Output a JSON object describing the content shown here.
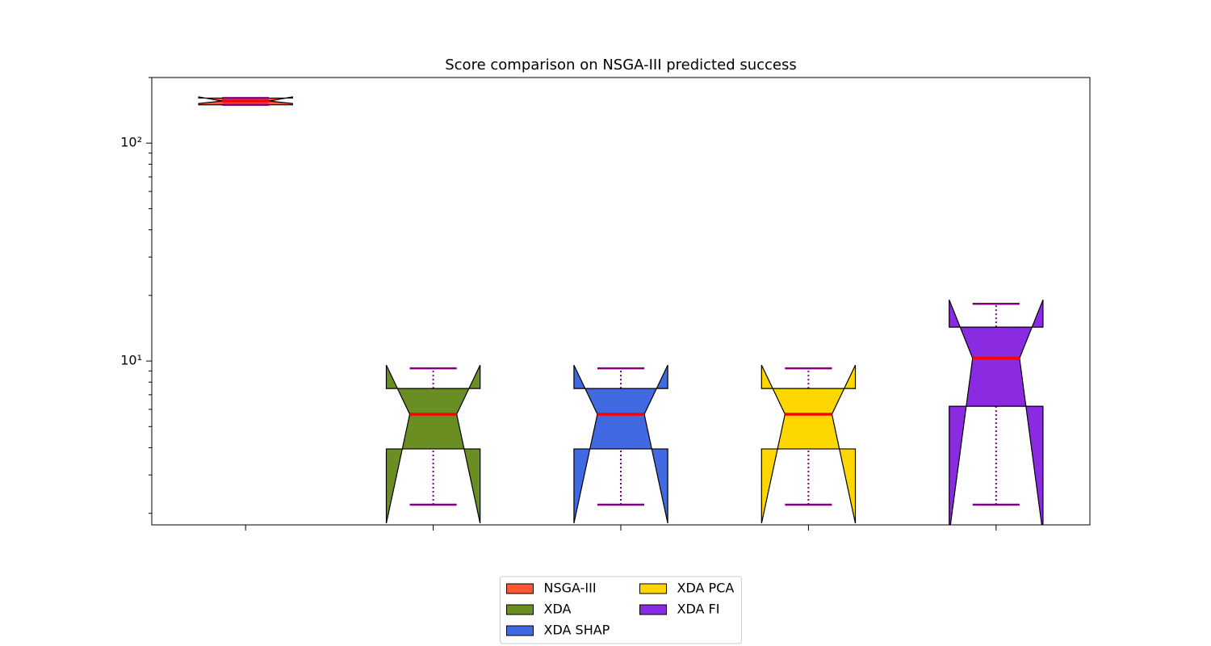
{
  "chart_data": {
    "type": "boxplot",
    "title": "Score comparison on NSGA-III predicted success",
    "yscale": "log",
    "ylim": [
      1.77,
      200
    ],
    "yticks": [
      {
        "value": 10,
        "label": "10¹"
      },
      {
        "value": 100,
        "label": "10²"
      }
    ],
    "yminorticks": [
      2,
      3,
      4,
      5,
      6,
      7,
      8,
      9,
      20,
      30,
      40,
      50,
      60,
      70,
      80,
      90,
      200
    ],
    "legend_loc": "lower center",
    "legend_columns": 2,
    "median_color": "#ff0000",
    "whisker_color": "#800080",
    "series": [
      {
        "name": "NSGA-III",
        "color": "#ff5733",
        "whislo": 150,
        "q1": 150,
        "med": 156,
        "q3": 161,
        "whishi": 161,
        "cilo": 152,
        "cihi": 163
      },
      {
        "name": "XDA",
        "color": "#6b8e23",
        "whislo": 2.19,
        "q1": 3.95,
        "med": 5.7,
        "q3": 7.48,
        "whishi": 9.26,
        "cilo": 1.8,
        "cihi": 9.58
      },
      {
        "name": "XDA SHAP",
        "color": "#4169e1",
        "whislo": 2.19,
        "q1": 3.95,
        "med": 5.7,
        "q3": 7.48,
        "whishi": 9.26,
        "cilo": 1.8,
        "cihi": 9.58
      },
      {
        "name": "XDA PCA",
        "color": "#ffd700",
        "whislo": 2.19,
        "q1": 3.95,
        "med": 5.7,
        "q3": 7.48,
        "whishi": 9.26,
        "cilo": 1.8,
        "cihi": 9.58
      },
      {
        "name": "XDA FI",
        "color": "#8a2be2",
        "whislo": 2.19,
        "q1": 6.2,
        "med": 10.3,
        "q3": 14.3,
        "whishi": 18.3,
        "cilo": 1.6,
        "cihi": 19.1
      }
    ]
  }
}
